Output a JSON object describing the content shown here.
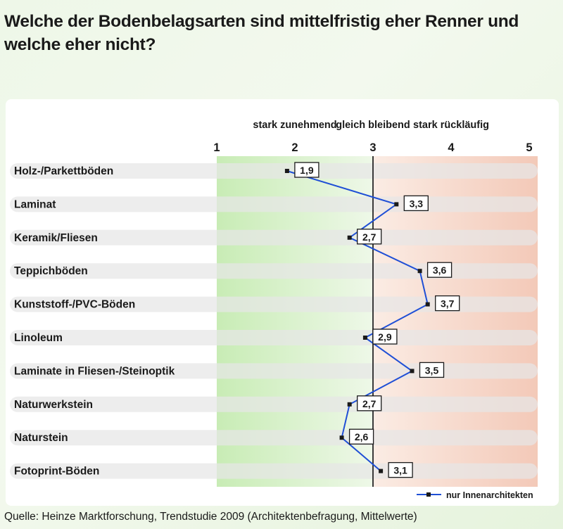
{
  "title": "Welche der Bodenbelagsarten sind mittelfristig eher Renner und welche eher nicht?",
  "source": "Quelle: Heinze Marktforschung, Trendstudie 2009 (Architektenbefragung, Mittelwerte)",
  "colors": {
    "line": "#1f4fd6",
    "green_zone": "#d3f0c4",
    "red_zone": "#f6d3c5",
    "row_band": "#e6e6e6",
    "reference_line": "#3a3a3a"
  },
  "chart_data": {
    "type": "line",
    "orientation": "horizontal",
    "scale_labels": [
      "stark zunehmend",
      "gleich bleibend",
      "stark rückläufig"
    ],
    "axis_ticks": [
      "1",
      "2",
      "3",
      "4",
      "5"
    ],
    "xlim": [
      1,
      5
    ],
    "reference_value": 3,
    "categories": [
      "Holz-/Parkettböden",
      "Laminat",
      "Keramik/Fliesen",
      "Teppichböden",
      "Kunststoff-/PVC-Böden",
      "Linoleum",
      "Laminate in Fliesen-/Steinoptik",
      "Naturwerkstein",
      "Naturstein",
      "Fotoprint-Böden"
    ],
    "value_labels": [
      "1,9",
      "3,3",
      "2,7",
      "3,6",
      "3,7",
      "2,9",
      "3,5",
      "2,7",
      "2,6",
      "3,1"
    ],
    "series": [
      {
        "name": "nur Innenarchitekten",
        "values": [
          1.9,
          3.3,
          2.7,
          3.6,
          3.7,
          2.9,
          3.5,
          2.7,
          2.6,
          3.1
        ]
      }
    ],
    "legend_position": "bottom-right"
  }
}
